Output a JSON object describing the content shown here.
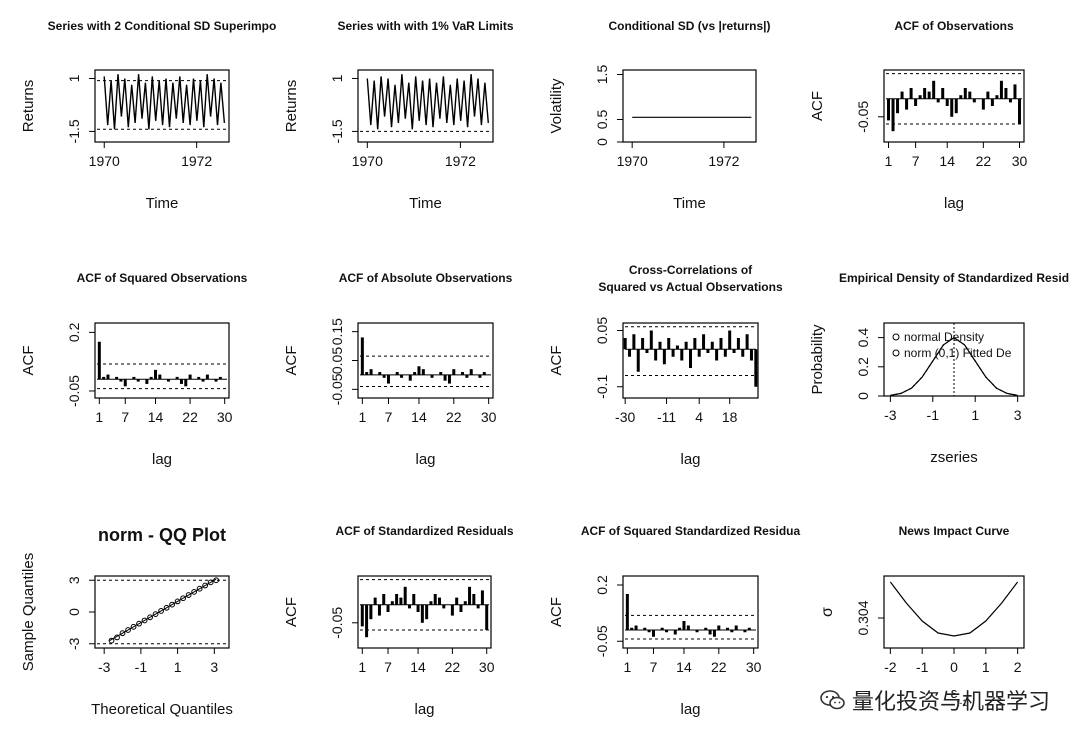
{
  "figure": {
    "watermark": "量化投资与机器学习",
    "watermark_icon": "wechat-icon"
  },
  "chart_data": [
    {
      "type": "line",
      "title": "Series with 2 Conditional SD Superimpo",
      "xlabel": "Time",
      "ylabel": "Returns",
      "xlim": [
        1969.8,
        1972.7
      ],
      "ylim": [
        -2.0,
        1.4
      ],
      "xticks": [
        1970,
        1972
      ],
      "yticks": [
        -1.5,
        1.0
      ],
      "series": [
        {
          "values": [
            1.1,
            -1.2,
            0.9,
            -1.4,
            1.2,
            -0.8,
            1.0,
            -1.3,
            0.7,
            -1.1,
            1.2,
            -0.9,
            0.8,
            -1.4,
            1.1,
            -1.0,
            0.9,
            -1.2,
            1.0,
            -1.3,
            0.8,
            -0.9,
            1.1,
            -1.1,
            0.7,
            -1.2,
            1.0,
            -1.0,
            0.9,
            -1.3,
            1.2,
            -0.8,
            1.0,
            -1.2,
            0.8,
            -1.1
          ],
          "x_start": 1970.0,
          "x_end": 1972.6
        }
      ],
      "hlines": [
        0.9,
        -1.4
      ]
    },
    {
      "type": "line",
      "title": "Series with with 1% VaR Limits",
      "xlabel": "Time",
      "ylabel": "Returns",
      "xlim": [
        1969.8,
        1972.7
      ],
      "ylim": [
        -2.0,
        1.4
      ],
      "xticks": [
        1970,
        1972
      ],
      "yticks": [
        -1.5,
        1.0
      ],
      "series": [
        {
          "values": [
            1.0,
            -1.2,
            0.9,
            -1.4,
            1.1,
            -0.8,
            1.0,
            -1.3,
            0.7,
            -1.1,
            1.2,
            -0.9,
            0.8,
            -1.4,
            1.1,
            -1.0,
            0.9,
            -1.2,
            1.0,
            -1.3,
            0.8,
            -0.9,
            1.1,
            -1.1,
            0.7,
            -1.2,
            1.0,
            -1.0,
            0.9,
            -1.3,
            1.2,
            -0.8,
            1.0,
            -1.2,
            0.8,
            -1.1
          ],
          "x_start": 1970.0,
          "x_end": 1972.6
        }
      ],
      "hlines": [
        -1.5
      ]
    },
    {
      "type": "line",
      "title": "Conditional SD (vs |returns|)",
      "xlabel": "Time",
      "ylabel": "Volatility",
      "xlim": [
        1969.8,
        1972.7
      ],
      "ylim": [
        0.0,
        1.6
      ],
      "xticks": [
        1970,
        1972
      ],
      "yticks": [
        0.0,
        0.5,
        1.5
      ],
      "series": [
        {
          "x": [
            1970.0,
            1972.6
          ],
          "values": [
            0.55,
            0.55
          ]
        }
      ]
    },
    {
      "type": "bar",
      "title": "ACF of Observations",
      "xlabel": "lag",
      "ylabel": "ACF",
      "xlim": [
        0,
        31
      ],
      "ylim": [
        -0.12,
        0.08
      ],
      "xticks": [
        1,
        7,
        14,
        22,
        30
      ],
      "yticks": [
        -0.05
      ],
      "x": [
        1,
        2,
        3,
        4,
        5,
        6,
        7,
        8,
        9,
        10,
        11,
        12,
        13,
        14,
        15,
        16,
        17,
        18,
        19,
        20,
        21,
        22,
        23,
        24,
        25,
        26,
        27,
        28,
        29,
        30
      ],
      "values": [
        -0.06,
        -0.09,
        -0.04,
        0.02,
        -0.03,
        0.03,
        -0.02,
        0.01,
        0.03,
        0.02,
        0.05,
        -0.01,
        0.03,
        -0.02,
        -0.05,
        -0.04,
        0.01,
        0.03,
        0.02,
        -0.01,
        0.0,
        -0.03,
        0.02,
        -0.02,
        0.01,
        0.05,
        0.03,
        -0.01,
        0.04,
        -0.07
      ],
      "hlines": [
        -0.07,
        0.07
      ]
    },
    {
      "type": "bar",
      "title": "ACF of Squared Observations",
      "xlabel": "lag",
      "ylabel": "ACF",
      "xlim": [
        0,
        31
      ],
      "ylim": [
        -0.08,
        0.24
      ],
      "xticks": [
        1,
        7,
        14,
        22,
        30
      ],
      "yticks": [
        -0.05,
        0.2
      ],
      "x": [
        1,
        2,
        3,
        4,
        5,
        6,
        7,
        8,
        9,
        10,
        11,
        12,
        13,
        14,
        15,
        16,
        17,
        18,
        19,
        20,
        21,
        22,
        23,
        24,
        25,
        26,
        27,
        28,
        29,
        30
      ],
      "values": [
        0.16,
        0.01,
        0.02,
        0.0,
        0.01,
        -0.01,
        -0.03,
        0.0,
        0.01,
        -0.01,
        0.0,
        -0.02,
        0.01,
        0.04,
        0.02,
        0.0,
        -0.01,
        0.0,
        0.01,
        -0.02,
        -0.03,
        0.02,
        0.0,
        0.01,
        -0.01,
        0.02,
        0.0,
        -0.01,
        0.01,
        0.0
      ],
      "hlines": [
        0.065,
        -0.04
      ]
    },
    {
      "type": "bar",
      "title": "ACF of Absolute Observations",
      "xlabel": "lag",
      "ylabel": "ACF",
      "xlim": [
        0,
        31
      ],
      "ylim": [
        -0.08,
        0.18
      ],
      "xticks": [
        1,
        7,
        14,
        22,
        30
      ],
      "yticks": [
        -0.05,
        0.05,
        0.15
      ],
      "x": [
        1,
        2,
        3,
        4,
        5,
        6,
        7,
        8,
        9,
        10,
        11,
        12,
        13,
        14,
        15,
        16,
        17,
        18,
        19,
        20,
        21,
        22,
        23,
        24,
        25,
        26,
        27,
        28,
        29,
        30
      ],
      "values": [
        0.13,
        0.01,
        0.02,
        0.0,
        0.01,
        -0.01,
        -0.03,
        0.0,
        0.01,
        -0.01,
        0.0,
        -0.02,
        0.01,
        0.03,
        0.02,
        0.0,
        -0.01,
        0.0,
        0.01,
        -0.02,
        -0.03,
        0.02,
        0.0,
        0.01,
        -0.01,
        0.02,
        0.0,
        -0.01,
        0.01,
        0.0
      ],
      "hlines": [
        0.065,
        -0.04
      ]
    },
    {
      "type": "bar",
      "title": "Cross-Correlations of",
      "subtitle": "Squared vs Actual Observations",
      "xlabel": "lag",
      "ylabel": "ACF",
      "xlim": [
        -31,
        31
      ],
      "ylim": [
        -0.13,
        0.07
      ],
      "xticks": [
        -30,
        -11,
        4,
        18
      ],
      "yticks": [
        -0.1,
        0.05
      ],
      "x": [
        -30,
        -28,
        -26,
        -24,
        -22,
        -20,
        -18,
        -16,
        -14,
        -12,
        -10,
        -8,
        -6,
        -4,
        -2,
        0,
        2,
        4,
        6,
        8,
        10,
        12,
        14,
        16,
        18,
        20,
        22,
        24,
        26,
        28,
        30
      ],
      "values": [
        0.03,
        -0.02,
        0.04,
        -0.06,
        0.03,
        -0.01,
        0.05,
        -0.03,
        0.02,
        -0.04,
        0.03,
        -0.02,
        0.01,
        -0.03,
        0.02,
        -0.05,
        0.03,
        -0.02,
        0.04,
        -0.01,
        0.02,
        -0.03,
        0.03,
        -0.02,
        0.05,
        -0.01,
        0.03,
        -0.02,
        0.04,
        -0.03,
        -0.1
      ],
      "hlines": [
        0.06,
        -0.07
      ]
    },
    {
      "type": "line",
      "title": "Empirical Density of Standardized Resid",
      "xlabel": "zseries",
      "ylabel": "Probability",
      "xlim": [
        -3.3,
        3.3
      ],
      "ylim": [
        0.0,
        0.5
      ],
      "xticks": [
        -3,
        -1,
        1,
        3
      ],
      "yticks": [
        0.0,
        0.2,
        0.4
      ],
      "legend": [
        "normal Density",
        "norm (0,1) Fitted De"
      ],
      "series": [
        {
          "name": "normal Density",
          "x": [
            -3,
            -2.5,
            -2,
            -1.5,
            -1,
            -0.5,
            0,
            0.5,
            1,
            1.5,
            2,
            2.5,
            3
          ],
          "values": [
            0.004,
            0.018,
            0.054,
            0.13,
            0.24,
            0.35,
            0.4,
            0.35,
            0.24,
            0.13,
            0.054,
            0.018,
            0.004
          ]
        },
        {
          "name": "norm (0,1) Fitted De",
          "x": [
            -3,
            -2.5,
            -2,
            -1.5,
            -1,
            -0.5,
            0,
            0.5,
            1,
            1.5,
            2,
            2.5,
            3
          ],
          "values": [
            0.004,
            0.018,
            0.054,
            0.13,
            0.24,
            0.35,
            0.4,
            0.35,
            0.24,
            0.13,
            0.054,
            0.018,
            0.004
          ]
        }
      ]
    },
    {
      "type": "scatter",
      "title": "norm - QQ Plot",
      "xlabel": "Theoretical Quantiles",
      "ylabel": "Sample Quantiles",
      "xlim": [
        -3.5,
        3.8
      ],
      "ylim": [
        -3.4,
        3.4
      ],
      "xticks": [
        -3,
        -1,
        1,
        3
      ],
      "yticks": [
        -3,
        0,
        3
      ],
      "x": [
        -2.6,
        -2.3,
        -2.0,
        -1.7,
        -1.4,
        -1.1,
        -0.8,
        -0.5,
        -0.2,
        0.1,
        0.4,
        0.7,
        1.0,
        1.3,
        1.6,
        1.9,
        2.2,
        2.5,
        2.8,
        3.1
      ],
      "values": [
        -2.7,
        -2.4,
        -2.0,
        -1.7,
        -1.4,
        -1.1,
        -0.8,
        -0.5,
        -0.2,
        0.1,
        0.4,
        0.7,
        1.0,
        1.3,
        1.6,
        1.9,
        2.2,
        2.5,
        2.8,
        3.0
      ],
      "hlines": [
        3.0,
        -3.0
      ]
    },
    {
      "type": "bar",
      "title": "ACF of Standardized Residuals",
      "xlabel": "lag",
      "ylabel": "ACF",
      "xlim": [
        0,
        31
      ],
      "ylim": [
        -0.12,
        0.08
      ],
      "xticks": [
        1,
        7,
        14,
        22,
        30
      ],
      "yticks": [
        -0.05
      ],
      "x": [
        1,
        2,
        3,
        4,
        5,
        6,
        7,
        8,
        9,
        10,
        11,
        12,
        13,
        14,
        15,
        16,
        17,
        18,
        19,
        20,
        21,
        22,
        23,
        24,
        25,
        26,
        27,
        28,
        29,
        30
      ],
      "values": [
        -0.06,
        -0.09,
        -0.04,
        0.02,
        -0.03,
        0.03,
        -0.02,
        0.01,
        0.03,
        0.02,
        0.05,
        -0.01,
        0.03,
        -0.02,
        -0.05,
        -0.04,
        0.01,
        0.03,
        0.02,
        -0.01,
        0.0,
        -0.03,
        0.02,
        -0.02,
        0.01,
        0.05,
        0.03,
        -0.01,
        0.04,
        -0.07
      ],
      "hlines": [
        -0.07,
        0.07
      ]
    },
    {
      "type": "bar",
      "title": "ACF of Squared Standardized Residua",
      "xlabel": "lag",
      "ylabel": "ACF",
      "xlim": [
        0,
        31
      ],
      "ylim": [
        -0.08,
        0.24
      ],
      "xticks": [
        1,
        7,
        14,
        22,
        30
      ],
      "yticks": [
        -0.05,
        0.2
      ],
      "x": [
        1,
        2,
        3,
        4,
        5,
        6,
        7,
        8,
        9,
        10,
        11,
        12,
        13,
        14,
        15,
        16,
        17,
        18,
        19,
        20,
        21,
        22,
        23,
        24,
        25,
        26,
        27,
        28,
        29,
        30
      ],
      "values": [
        0.16,
        0.01,
        0.02,
        0.0,
        0.01,
        -0.01,
        -0.03,
        0.0,
        0.01,
        -0.01,
        0.0,
        -0.02,
        0.01,
        0.04,
        0.02,
        0.0,
        -0.01,
        0.0,
        0.01,
        -0.02,
        -0.03,
        0.02,
        0.0,
        0.01,
        -0.01,
        0.02,
        0.0,
        -0.01,
        0.01,
        0.0
      ],
      "hlines": [
        0.065,
        -0.04
      ]
    },
    {
      "type": "line",
      "title": "News Impact Curve",
      "xlabel": "ε t-1",
      "ylabel": "σ t",
      "xlim": [
        -2.2,
        2.2
      ],
      "ylim": [
        0.3035,
        0.3047
      ],
      "xticks": [
        -2,
        -1,
        0,
        1,
        2
      ],
      "yticks": [
        0.304
      ],
      "series": [
        {
          "x": [
            -2,
            -1.5,
            -1,
            -0.5,
            0,
            0.5,
            1,
            1.5,
            2
          ],
          "values": [
            0.3046,
            0.30425,
            0.30395,
            0.30375,
            0.3037,
            0.30375,
            0.30395,
            0.30425,
            0.3046
          ]
        }
      ]
    }
  ]
}
